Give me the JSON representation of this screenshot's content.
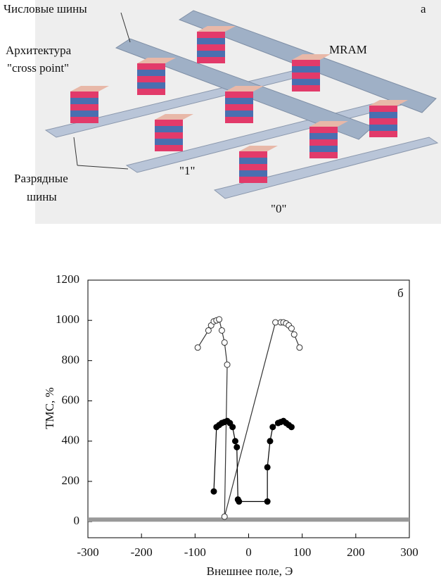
{
  "diagram": {
    "panel_label": "а",
    "word_lines": "Числовые шины",
    "architecture": [
      "Архитектура",
      "\"cross point\""
    ],
    "mram": "MRAM",
    "bit_lines": [
      "Разрядные",
      "шины"
    ],
    "state_1": "\"1\"",
    "state_0": "\"0\""
  },
  "chart_data": {
    "type": "line",
    "panel_label": "б",
    "x_label": "Внешнее поле, Э",
    "y_label": "ТМС, %",
    "xlim": [
      -300,
      300
    ],
    "xticks": [
      -300,
      -200,
      -100,
      0,
      100,
      200,
      300
    ],
    "ylim": [
      -80,
      1200
    ],
    "yticks": [
      0,
      200,
      400,
      600,
      800,
      1000,
      1200
    ],
    "series": [
      {
        "color": "#999999",
        "marker": "none",
        "line_width": 6,
        "x": [
          -300,
          300
        ],
        "values": [
          10,
          10
        ]
      },
      {
        "color": "#333333",
        "marker": "open",
        "line_width": 1.2,
        "x": [
          -95,
          -75,
          -70,
          -65,
          -60,
          -55,
          -50,
          -45,
          -40,
          -45,
          50,
          60,
          65,
          70,
          75,
          80,
          85,
          95
        ],
        "values": [
          865,
          950,
          975,
          995,
          1000,
          1005,
          950,
          890,
          780,
          25,
          990,
          990,
          990,
          985,
          975,
          960,
          930,
          865
        ]
      },
      {
        "color": "#000000",
        "marker": "filled",
        "line_width": 1.2,
        "x": [
          -65,
          -60,
          -55,
          -50,
          -45,
          -40,
          -35,
          -30,
          -25,
          -22,
          -20,
          -18,
          35,
          35,
          40,
          45,
          55,
          60,
          65,
          70,
          75,
          80
        ],
        "values": [
          150,
          470,
          480,
          490,
          495,
          500,
          490,
          470,
          400,
          370,
          110,
          100,
          100,
          270,
          400,
          470,
          490,
          495,
          500,
          490,
          480,
          470
        ]
      }
    ]
  }
}
